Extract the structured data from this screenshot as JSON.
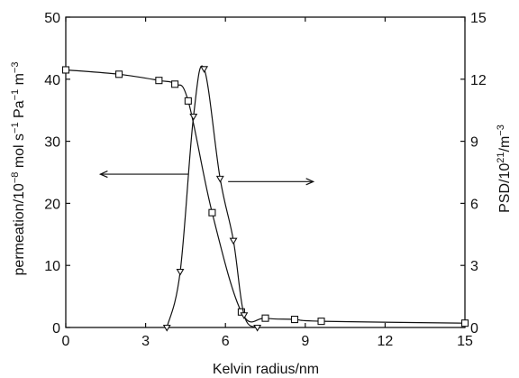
{
  "chart_data": {
    "type": "line",
    "title": "",
    "xlabel": "Kelvin radius/nm",
    "ylabel_left": {
      "text": "permeation/10",
      "sup1": "−8",
      "mid": " mol s",
      "sup2": "−1",
      "mid2": " Pa",
      "sup3": "−1",
      "mid3": " m",
      "sup4": "−3"
    },
    "ylabel_right": {
      "text": "PSD/10",
      "sup1": "21",
      "mid": "/m",
      "sup2": "−3"
    },
    "xlim": [
      0,
      15
    ],
    "ylim_left": [
      0,
      50
    ],
    "ylim_right": [
      0,
      15
    ],
    "x_ticks": [
      "0",
      "3",
      "6",
      "9",
      "12",
      "15"
    ],
    "y_left_ticks": [
      "0",
      "10",
      "20",
      "30",
      "40",
      "50"
    ],
    "y_right_ticks": [
      "0",
      "3",
      "6",
      "9",
      "12",
      "15"
    ],
    "grid": false,
    "series": [
      {
        "axis": "left",
        "marker": "square",
        "x": [
          0,
          2.0,
          3.5,
          4.1,
          4.6,
          5.5,
          6.6,
          7.5,
          8.6,
          9.6,
          15
        ],
        "y": [
          41.5,
          40.8,
          39.8,
          39.2,
          36.5,
          18.5,
          2.5,
          1.5,
          1.3,
          1.0,
          0.7
        ]
      },
      {
        "axis": "right",
        "marker": "triangle-down",
        "x": [
          3.8,
          4.3,
          4.8,
          5.2,
          5.8,
          6.3,
          6.7,
          7.2
        ],
        "y": [
          0,
          2.7,
          10.2,
          12.5,
          7.2,
          4.2,
          0.6,
          0
        ]
      }
    ],
    "annotations": [
      {
        "type": "arrow",
        "direction": "left",
        "x_from": 4.6,
        "x_to": 1.3,
        "y_left": 24.7,
        "points_to_axis": "left"
      },
      {
        "type": "arrow",
        "direction": "right",
        "x_from": 6.1,
        "x_to": 9.3,
        "y_left": 23.5,
        "points_to_axis": "right"
      }
    ]
  }
}
